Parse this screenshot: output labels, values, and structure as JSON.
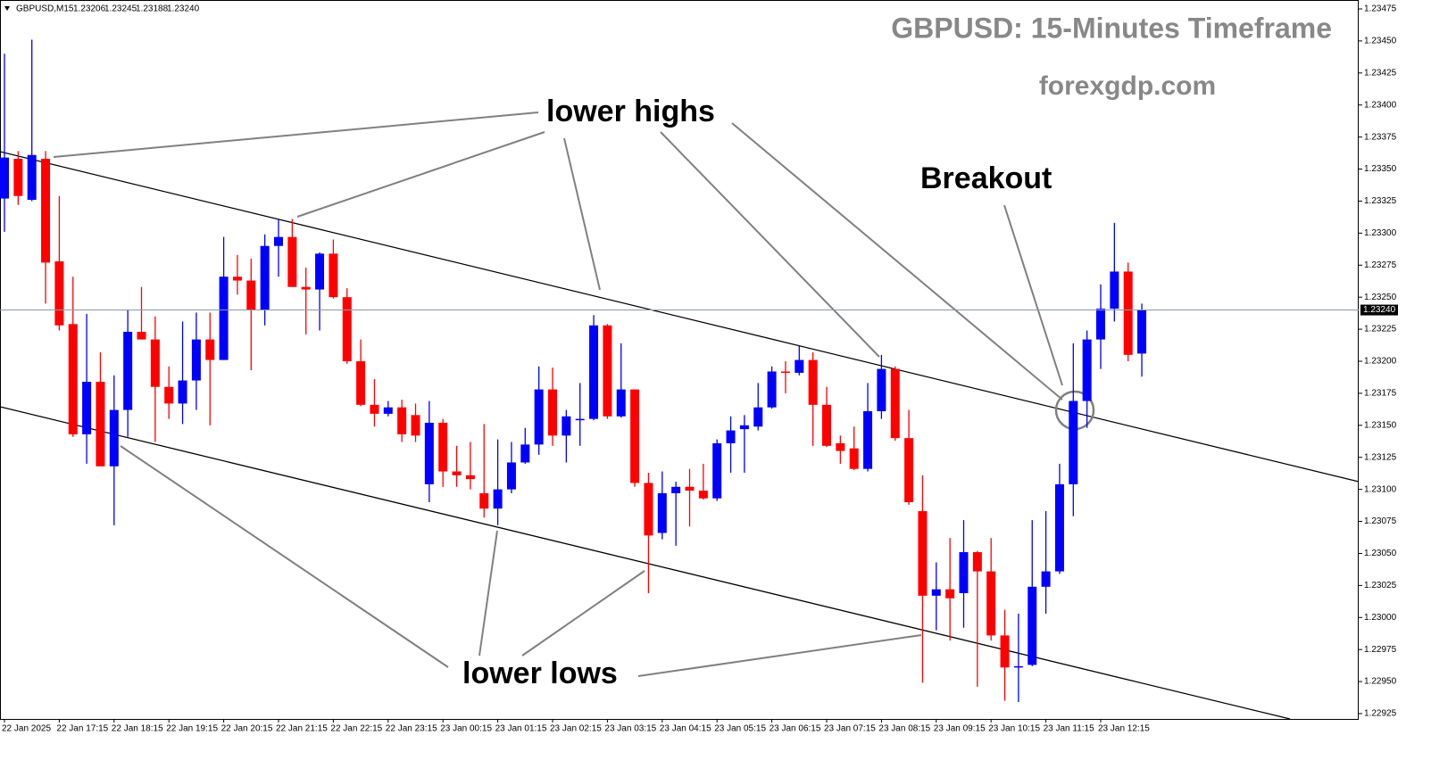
{
  "chart_data": {
    "type": "candlestick",
    "header_symbol": "GBPUSD,M15",
    "header_values": [
      1.23206,
      1.23245,
      1.23188,
      {
        "value": 1.2324,
        "label": "1.23240"
      }
    ],
    "title": "GBPUSD: 15-Minutes Timeframe",
    "subtitle": "forexgdp.com",
    "annotations": {
      "lower_highs": "lower highs",
      "lower_lows": "lower lows",
      "breakout": "Breakout"
    },
    "up_color": "#0000ff",
    "down_color": "#ff0000",
    "current_price": {
      "value": 1.2324,
      "label": "1.23240"
    },
    "categories": [
      "22 Jan 2025",
      null,
      null,
      null,
      "22 Jan 17:15",
      null,
      null,
      null,
      "22 Jan 18:15",
      null,
      null,
      null,
      "22 Jan 19:15",
      null,
      null,
      null,
      "22 Jan 20:15",
      null,
      null,
      null,
      "22 Jan 21:15",
      null,
      null,
      null,
      "22 Jan 22:15",
      null,
      null,
      null,
      "22 Jan 23:15",
      null,
      null,
      null,
      "23 Jan 00:15",
      null,
      null,
      null,
      "23 Jan 01:15",
      null,
      null,
      null,
      "23 Jan 02:15",
      null,
      null,
      null,
      "23 Jan 03:15",
      null,
      null,
      null,
      "23 Jan 04:15",
      null,
      null,
      null,
      "23 Jan 05:15",
      null,
      null,
      null,
      "23 Jan 06:15",
      null,
      null,
      null,
      "23 Jan 07:15",
      null,
      null,
      null,
      "23 Jan 08:15",
      null,
      null,
      null,
      "23 Jan 09:15",
      null,
      null,
      null,
      "23 Jan 10:15",
      null,
      null,
      null,
      "23 Jan 11:15",
      null,
      null,
      null,
      "23 Jan 12:15",
      null,
      null,
      null
    ],
    "open": [
      1.23327,
      1.23358,
      1.23326,
      1.23358,
      1.23278,
      1.23229,
      1.23143,
      1.23184,
      1.23118,
      1.23162,
      1.23223,
      1.23217,
      1.2318,
      1.23167,
      1.23185,
      1.23217,
      1.23201,
      1.23266,
      1.23263,
      1.2324,
      1.2329,
      1.23297,
      1.23258,
      1.23256,
      1.23284,
      1.2325,
      1.232,
      1.23166,
      1.23159,
      1.23164,
      1.23158,
      1.23104,
      1.23152,
      1.23114,
      1.23111,
      1.23097,
      1.23085,
      1.231,
      1.23121,
      1.23135,
      1.23178,
      1.23142,
      1.23154,
      1.23155,
      1.23228,
      1.23157,
      1.23178,
      1.23105,
      1.23066,
      1.23097,
      1.23102,
      1.23099,
      1.23093,
      1.23136,
      1.23147,
      1.23149,
      1.23164,
      1.23192,
      1.23191,
      1.23201,
      1.23166,
      1.23136,
      1.23132,
      1.23116,
      1.23161,
      1.23194,
      1.2314,
      1.23083,
      1.23017,
      1.23022,
      1.23019,
      1.23051,
      1.23036,
      1.22986,
      1.22961,
      1.22963,
      1.23024,
      1.23036,
      1.23104,
      1.23169,
      1.23217,
      1.23241,
      1.2327,
      1.23206
    ],
    "high": [
      1.2344,
      1.23364,
      1.23451,
      1.23364,
      1.23329,
      1.23266,
      1.23237,
      1.23207,
      1.23189,
      1.2324,
      1.23258,
      1.23235,
      1.23196,
      1.23231,
      1.23238,
      1.23238,
      1.23297,
      1.23283,
      1.2328,
      1.23299,
      1.23311,
      1.23311,
      1.23273,
      1.23285,
      1.23295,
      1.23257,
      1.23217,
      1.23186,
      1.23169,
      1.2317,
      1.23167,
      1.23169,
      1.23155,
      1.23134,
      1.23137,
      1.23151,
      1.23139,
      1.23137,
      1.23148,
      1.23196,
      1.23195,
      1.23162,
      1.23183,
      1.23236,
      1.23229,
      1.23214,
      1.23178,
      1.23113,
      1.23114,
      1.23106,
      1.23116,
      1.2312,
      1.23139,
      1.23157,
      1.23158,
      1.23183,
      1.23196,
      1.232,
      1.23212,
      1.23207,
      1.2318,
      1.23142,
      1.23149,
      1.23183,
      1.23205,
      1.23196,
      1.23162,
      1.23111,
      1.23043,
      1.23062,
      1.23076,
      1.23052,
      1.23062,
      1.23006,
      1.23003,
      1.23076,
      1.23083,
      1.2312,
      1.23214,
      1.23224,
      1.2326,
      1.23308,
      1.23277,
      1.23245
    ],
    "low": [
      1.23301,
      1.23322,
      1.23325,
      1.23245,
      1.23224,
      1.23141,
      1.2312,
      1.23118,
      1.23072,
      1.23141,
      1.23217,
      1.23137,
      1.23155,
      1.23151,
      1.23162,
      1.2315,
      1.23201,
      1.23252,
      1.23193,
      1.23228,
      1.23266,
      1.23258,
      1.23221,
      1.23224,
      1.23249,
      1.23198,
      1.23165,
      1.23149,
      1.23157,
      1.23137,
      1.23137,
      1.2309,
      1.23102,
      1.23102,
      1.231,
      1.23078,
      1.23072,
      1.23097,
      1.2312,
      1.23127,
      1.23134,
      1.23121,
      1.23134,
      1.23154,
      1.23155,
      1.23156,
      1.23102,
      1.23019,
      1.23061,
      1.23056,
      1.23071,
      1.23092,
      1.23091,
      1.23113,
      1.23113,
      1.23146,
      1.23163,
      1.23175,
      1.23189,
      1.23134,
      1.23133,
      1.2312,
      1.23115,
      1.23114,
      1.23155,
      1.23138,
      1.23088,
      1.22949,
      1.2299,
      1.22982,
      1.22992,
      1.22946,
      1.22982,
      1.22935,
      1.22934,
      1.22962,
      1.23003,
      1.23034,
      1.23079,
      1.23148,
      1.23194,
      1.23231,
      1.232,
      1.23188
    ],
    "close": [
      1.23359,
      1.23329,
      1.23361,
      1.23277,
      1.23228,
      1.23143,
      1.23184,
      1.23118,
      1.23162,
      1.23223,
      1.23217,
      1.2318,
      1.23167,
      1.23185,
      1.23217,
      1.23201,
      1.23266,
      1.23263,
      1.2324,
      1.2329,
      1.23297,
      1.23258,
      1.23256,
      1.23284,
      1.2325,
      1.232,
      1.23166,
      1.23159,
      1.23164,
      1.23143,
      1.23142,
      1.23152,
      1.23114,
      1.23111,
      1.23108,
      1.23085,
      1.231,
      1.23121,
      1.23135,
      1.23178,
      1.23142,
      1.23157,
      1.23155,
      1.23228,
      1.23157,
      1.23178,
      1.23105,
      1.23064,
      1.23097,
      1.23102,
      1.23099,
      1.23093,
      1.23136,
      1.23146,
      1.2315,
      1.23164,
      1.23192,
      1.23191,
      1.23201,
      1.23166,
      1.23134,
      1.2313,
      1.23116,
      1.23161,
      1.23194,
      1.2314,
      1.2309,
      1.23017,
      1.23022,
      1.23015,
      1.23051,
      1.23036,
      1.22986,
      1.22961,
      1.22962,
      1.23024,
      1.23036,
      1.23104,
      1.23169,
      1.23217,
      1.23241,
      1.2327,
      1.23205,
      1.2324
    ],
    "ylim": [
      1.22925,
      1.23475
    ],
    "yticks": [
      1.23475,
      {
        "value": 1.2345,
        "label": "1.23450"
      },
      1.23425,
      {
        "value": 1.234,
        "label": "1.23400"
      },
      1.23375,
      {
        "value": 1.2335,
        "label": "1.23350"
      },
      1.23325,
      {
        "value": 1.233,
        "label": "1.23300"
      },
      1.23275,
      {
        "value": 1.2325,
        "label": "1.23250"
      },
      1.23225,
      {
        "value": 1.232,
        "label": "1.23200"
      },
      1.23175,
      {
        "value": 1.2315,
        "label": "1.23150"
      },
      1.23125,
      {
        "value": 1.231,
        "label": "1.23100"
      },
      1.23075,
      {
        "value": 1.2305,
        "label": "1.23050"
      },
      1.23025,
      {
        "value": 1.23,
        "label": "1.23000"
      },
      1.22975,
      {
        "value": 1.2295,
        "label": "1.22950"
      },
      1.22925
    ],
    "grid": false
  }
}
